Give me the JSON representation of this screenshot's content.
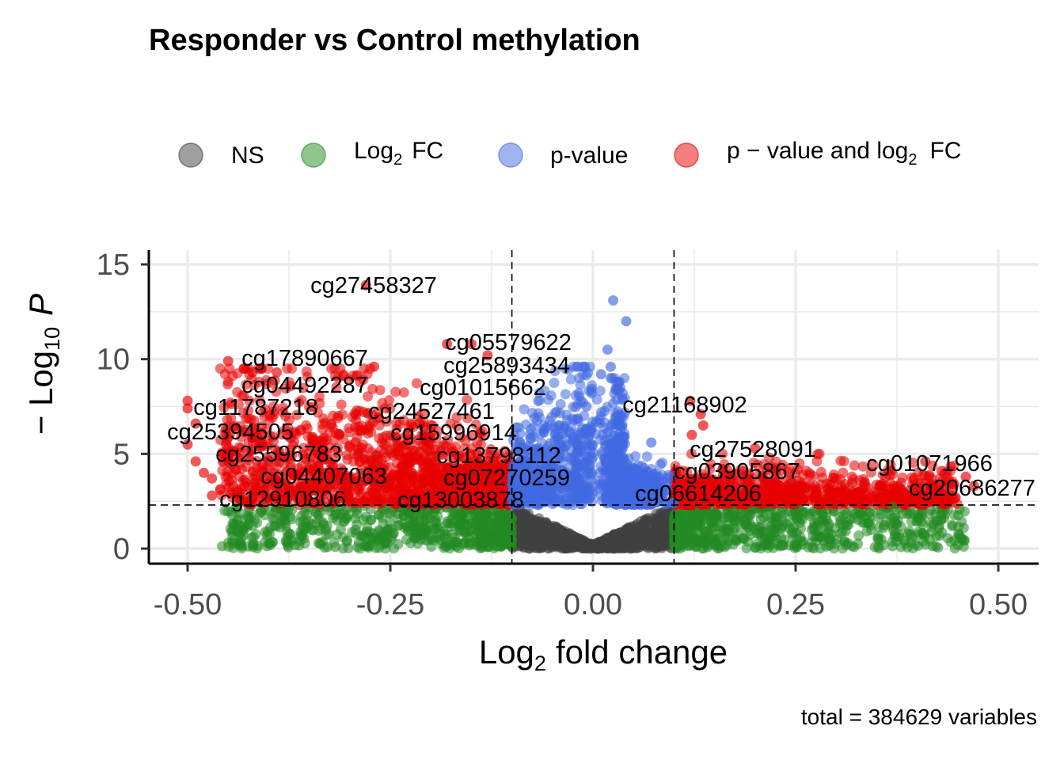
{
  "chart_data": {
    "type": "scatter",
    "title": "Responder vs Control methylation",
    "xlabel_main": "Log",
    "xlabel_sub": "2",
    "xlabel_rest": "fold change",
    "ylabel_prefix": "− Log",
    "ylabel_sub": "10",
    "ylabel_var": "P",
    "xlim": [
      -0.55,
      0.55
    ],
    "ylim": [
      -0.8,
      15.7
    ],
    "x_ticks": [
      -0.5,
      -0.25,
      0.0,
      0.25,
      0.5
    ],
    "x_tick_labels": [
      "-0.50",
      "-0.25",
      "0.00",
      "0.25",
      "0.50"
    ],
    "y_ticks": [
      0,
      5,
      10,
      15
    ],
    "y_tick_labels": [
      "0",
      "5",
      "10",
      "15"
    ],
    "fc_cutoff": 0.1,
    "p_cutoff_log10": 2.3,
    "grid": true,
    "legend_position": "top",
    "caption": "total = 384629 variables",
    "series": [
      {
        "name": "NS",
        "color": "#404040"
      },
      {
        "name": "Log₂ FC",
        "color": "#228B22"
      },
      {
        "name": "p-value",
        "color": "#4169E1"
      },
      {
        "name": "p − value and log₂ FC",
        "color": "#E80000"
      }
    ],
    "legend_parts": {
      "ns": "NS",
      "log2fc_main": "Log",
      "log2fc_sub": "2",
      "log2fc_rest": "FC",
      "pvalue": "p-value",
      "both_main": "p − value  and  log",
      "both_sub": "2",
      "both_rest": "FC"
    },
    "labeled_points": [
      {
        "label": "cg27458327",
        "x": -0.28,
        "y": 13.9
      },
      {
        "label": "cg05579622",
        "x": -0.19,
        "y": 10.8
      },
      {
        "label": "cg17890667",
        "x": -0.45,
        "y": 9.8
      },
      {
        "label": "cg25893434",
        "x": -0.16,
        "y": 9.6
      },
      {
        "label": "cg04492287",
        "x": -0.42,
        "y": 8.4
      },
      {
        "label": "cg01015662",
        "x": -0.2,
        "y": 8.3
      },
      {
        "label": "cg11787218",
        "x": -0.5,
        "y": 7.4
      },
      {
        "label": "cg24527461",
        "x": -0.27,
        "y": 7.1
      },
      {
        "label": "cg21168902",
        "x": 0.11,
        "y": 7.9
      },
      {
        "label": "cg25394505",
        "x": -0.5,
        "y": 6.2
      },
      {
        "label": "cg15996914",
        "x": -0.23,
        "y": 5.8
      },
      {
        "label": "cg25596783",
        "x": -0.47,
        "y": 5.3
      },
      {
        "label": "cg13798112",
        "x": -0.18,
        "y": 4.9
      },
      {
        "label": "cg27528091",
        "x": 0.2,
        "y": 5.3
      },
      {
        "label": "cg01071966",
        "x": 0.41,
        "y": 4.6
      },
      {
        "label": "cg03905867",
        "x": 0.17,
        "y": 4.3
      },
      {
        "label": "cg04407063",
        "x": -0.38,
        "y": 3.6
      },
      {
        "label": "cg07270259",
        "x": -0.15,
        "y": 3.6
      },
      {
        "label": "cg20686277",
        "x": 0.46,
        "y": 3.5
      },
      {
        "label": "cg12910806",
        "x": -0.47,
        "y": 2.8
      },
      {
        "label": "cg13003878",
        "x": -0.23,
        "y": 2.6
      },
      {
        "label": "cg06614206",
        "x": 0.12,
        "y": 2.7
      }
    ]
  }
}
